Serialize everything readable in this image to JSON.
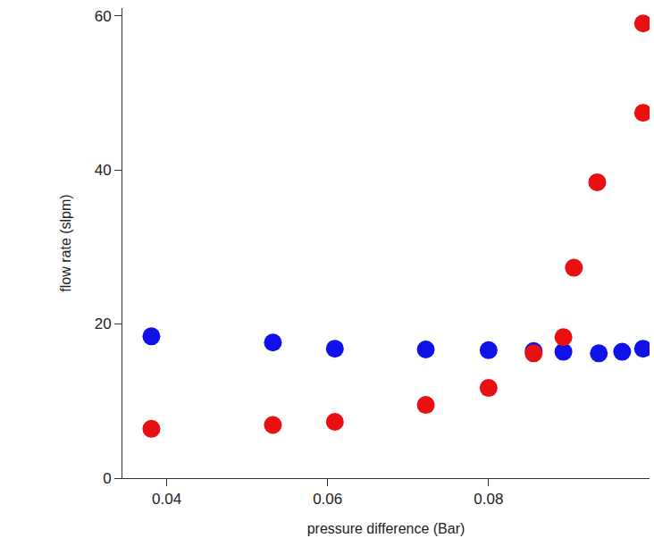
{
  "chart_data": {
    "type": "scatter",
    "x_label": "pressure difference (Bar)",
    "y_label": "flow rate (slpm)",
    "series": [
      {
        "color": "#1010e8",
        "marker": "circle",
        "x": [
          0.0381,
          0.0532,
          0.0609,
          0.0722,
          0.08,
          0.0856,
          0.0893,
          0.0937,
          0.0966,
          0.0992
        ],
        "values": [
          18.4,
          17.6,
          16.8,
          16.7,
          16.6,
          16.5,
          16.4,
          16.2,
          16.4,
          16.8
        ]
      },
      {
        "color": "#e81010",
        "marker": "circle",
        "x": [
          0.0381,
          0.0532,
          0.0609,
          0.0722,
          0.08,
          0.0856,
          0.0893,
          0.0906,
          0.0935,
          0.0992,
          0.0992
        ],
        "values": [
          6.4,
          6.9,
          7.3,
          9.5,
          11.7,
          16.2,
          18.3,
          27.3,
          38.4,
          47.4,
          59.0
        ]
      }
    ],
    "xlim": [
      0.0345,
      0.1
    ],
    "xticks": [
      0.04,
      0.06,
      0.08
    ],
    "ylim": [
      0,
      61
    ],
    "yticks": [
      0,
      20,
      40,
      60
    ],
    "grid": false
  }
}
